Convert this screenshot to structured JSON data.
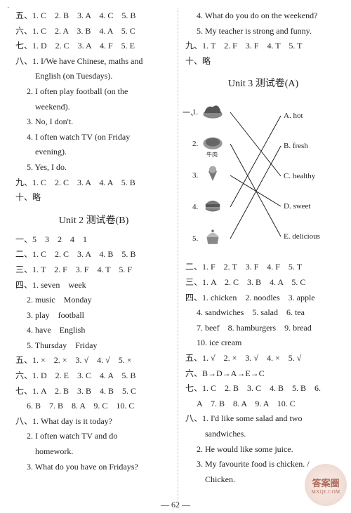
{
  "dot": "·",
  "left": {
    "l5": "五、1. C　2. B　3. A　4. C　5. B",
    "l6": "六、1. C　2. A　3. B　4. A　5. C",
    "l7": "七、1. D　2. C　3. A　4. F　5. E",
    "l8_1a": "八、1. I/We have Chinese, maths and",
    "l8_1b": "English (on Tuesdays).",
    "l8_2a": "2. I often play football (on the",
    "l8_2b": "weekend).",
    "l8_3": "3. No, I don't.",
    "l8_4a": "4. I often watch TV (on Friday",
    "l8_4b": "evening).",
    "l8_5": "5. Yes, I do.",
    "l9": "九、1. C　2. C　3. A　4. A　5. B",
    "l10": "十、略",
    "heading": "Unit 2 测试卷(B)",
    "b1": "一、5　3　2　4　1",
    "b2": "二、1. C　2. C　3. A　4. B　5. B",
    "b3": "三、1. T　2. F　3. F　4. T　5. F",
    "b4_1": "四、1. seven　week",
    "b4_2": "2. music　Monday",
    "b4_3": "3. play　football",
    "b4_4": "4. have　English",
    "b4_5": "5. Thursday　Friday",
    "b5": "五、1. ×　2. ×　3. √　4. √　5. ×",
    "b6": "六、1. D　2. E　3. C　4. A　5. B",
    "b7a": "七、1. A　2. B　3. B　4. B　5. C",
    "b7b": "6. B　7. B　8. A　9. C　10. C",
    "b8_1": "八、1. What day is it today?",
    "b8_2a": "2. I often watch TV and do",
    "b8_2b": "homework.",
    "b8_3": "3. What do you have on Fridays?"
  },
  "right": {
    "r8_4": "4. What do you do on the weekend?",
    "r8_5": "5. My teacher is strong and funny.",
    "r9": "九、1. T　2. F　3. F　4. T　5. T",
    "r10": "十、略",
    "heading": "Unit 3 测试卷(A)",
    "match": {
      "prefix": "一、",
      "left_items": [
        {
          "n": "1.",
          "label": "",
          "icon": "salad"
        },
        {
          "n": "2.",
          "label": "牛肉",
          "icon": "beef"
        },
        {
          "n": "3.",
          "label": "",
          "icon": "icecream"
        },
        {
          "n": "4.",
          "label": "",
          "icon": "burger"
        },
        {
          "n": "5.",
          "label": "",
          "icon": "cupcake"
        }
      ],
      "right_items": [
        "A. hot",
        "B. fresh",
        "C. healthy",
        "D. sweet",
        "E. delicious"
      ],
      "edges": [
        [
          0,
          2
        ],
        [
          1,
          4
        ],
        [
          2,
          3
        ],
        [
          3,
          0
        ],
        [
          4,
          1
        ]
      ],
      "line_color": "#222222",
      "line_width": 1
    },
    "u2": "二、1. F　2. T　3. F　4. F　5. T",
    "u3": "三、1. A　2. C　3. B　4. A　5. C",
    "u4_1": "四、1. chicken　2. noodles　3. apple",
    "u4_2": "4. sandwiches　5. salad　6. tea",
    "u4_3": "7. beef　8. hamburgers　9. bread",
    "u4_4": "10. ice cream",
    "u5": "五、1. √　2. ×　3. √　4. ×　5. √",
    "u6": "六、B→D→A→E→C",
    "u7a": "七、1. C　2. B　3. C　4. B　5. B　6.",
    "u7b": "A　7. B　8. A　9. A　10. C",
    "u8_1a": "八、1. I'd like some salad and two",
    "u8_1b": "sandwiches.",
    "u8_2": "2. He would like some juice.",
    "u8_3a": "3. My favourite food is chicken. /",
    "u8_3b": "Chicken."
  },
  "pagenum": "— 62 —",
  "watermark": {
    "top": "答案圈",
    "bottom": "MXQE.COM"
  }
}
